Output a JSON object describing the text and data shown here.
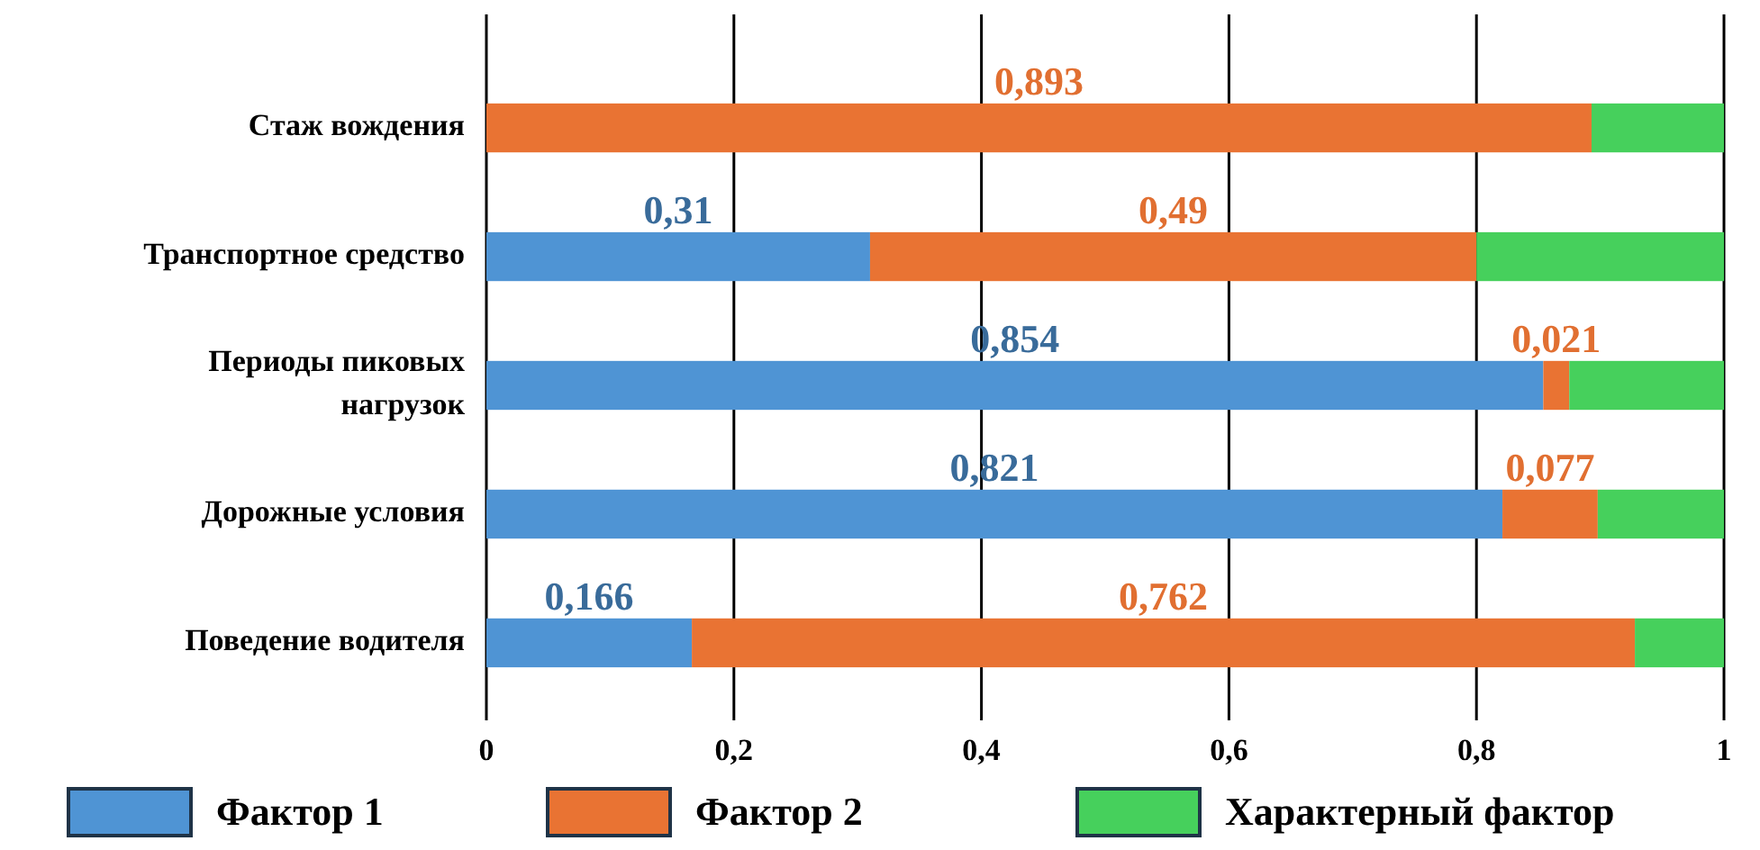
{
  "chart_data": {
    "type": "bar",
    "orientation": "horizontal",
    "stacked": true,
    "categories": [
      "Стаж вождения",
      "Транспортное средство",
      "Периоды пиковых нагрузок",
      "Дорожные условия",
      "Поведение водителя"
    ],
    "series": [
      {
        "name": "Фактор 1",
        "color": "#4f94d4",
        "values": [
          0,
          0.31,
          0.854,
          0.821,
          0.166
        ],
        "value_labels": [
          null,
          "0,31",
          "0,854",
          "0,821",
          "0,166"
        ]
      },
      {
        "name": "Фактор 2",
        "color": "#e97333",
        "values": [
          0.893,
          0.49,
          0.021,
          0.077,
          0.762
        ],
        "value_labels": [
          "0,893",
          "0,49",
          "0,021",
          "0,077",
          "0,762"
        ]
      },
      {
        "name": "Характерный фактор",
        "color": "#46d05c",
        "values": [
          0.107,
          0.2,
          0.125,
          0.102,
          0.072
        ]
      }
    ],
    "xlim": [
      0,
      1
    ],
    "xticks": [
      0,
      {
        "value": 0.2,
        "label": "0,2"
      },
      {
        "value": 0.4,
        "label": "0,4"
      },
      {
        "value": 0.6,
        "label": "0,6"
      },
      {
        "value": 0.8,
        "label": "0,8"
      },
      1
    ],
    "grid": "x",
    "legend": "bottom"
  }
}
